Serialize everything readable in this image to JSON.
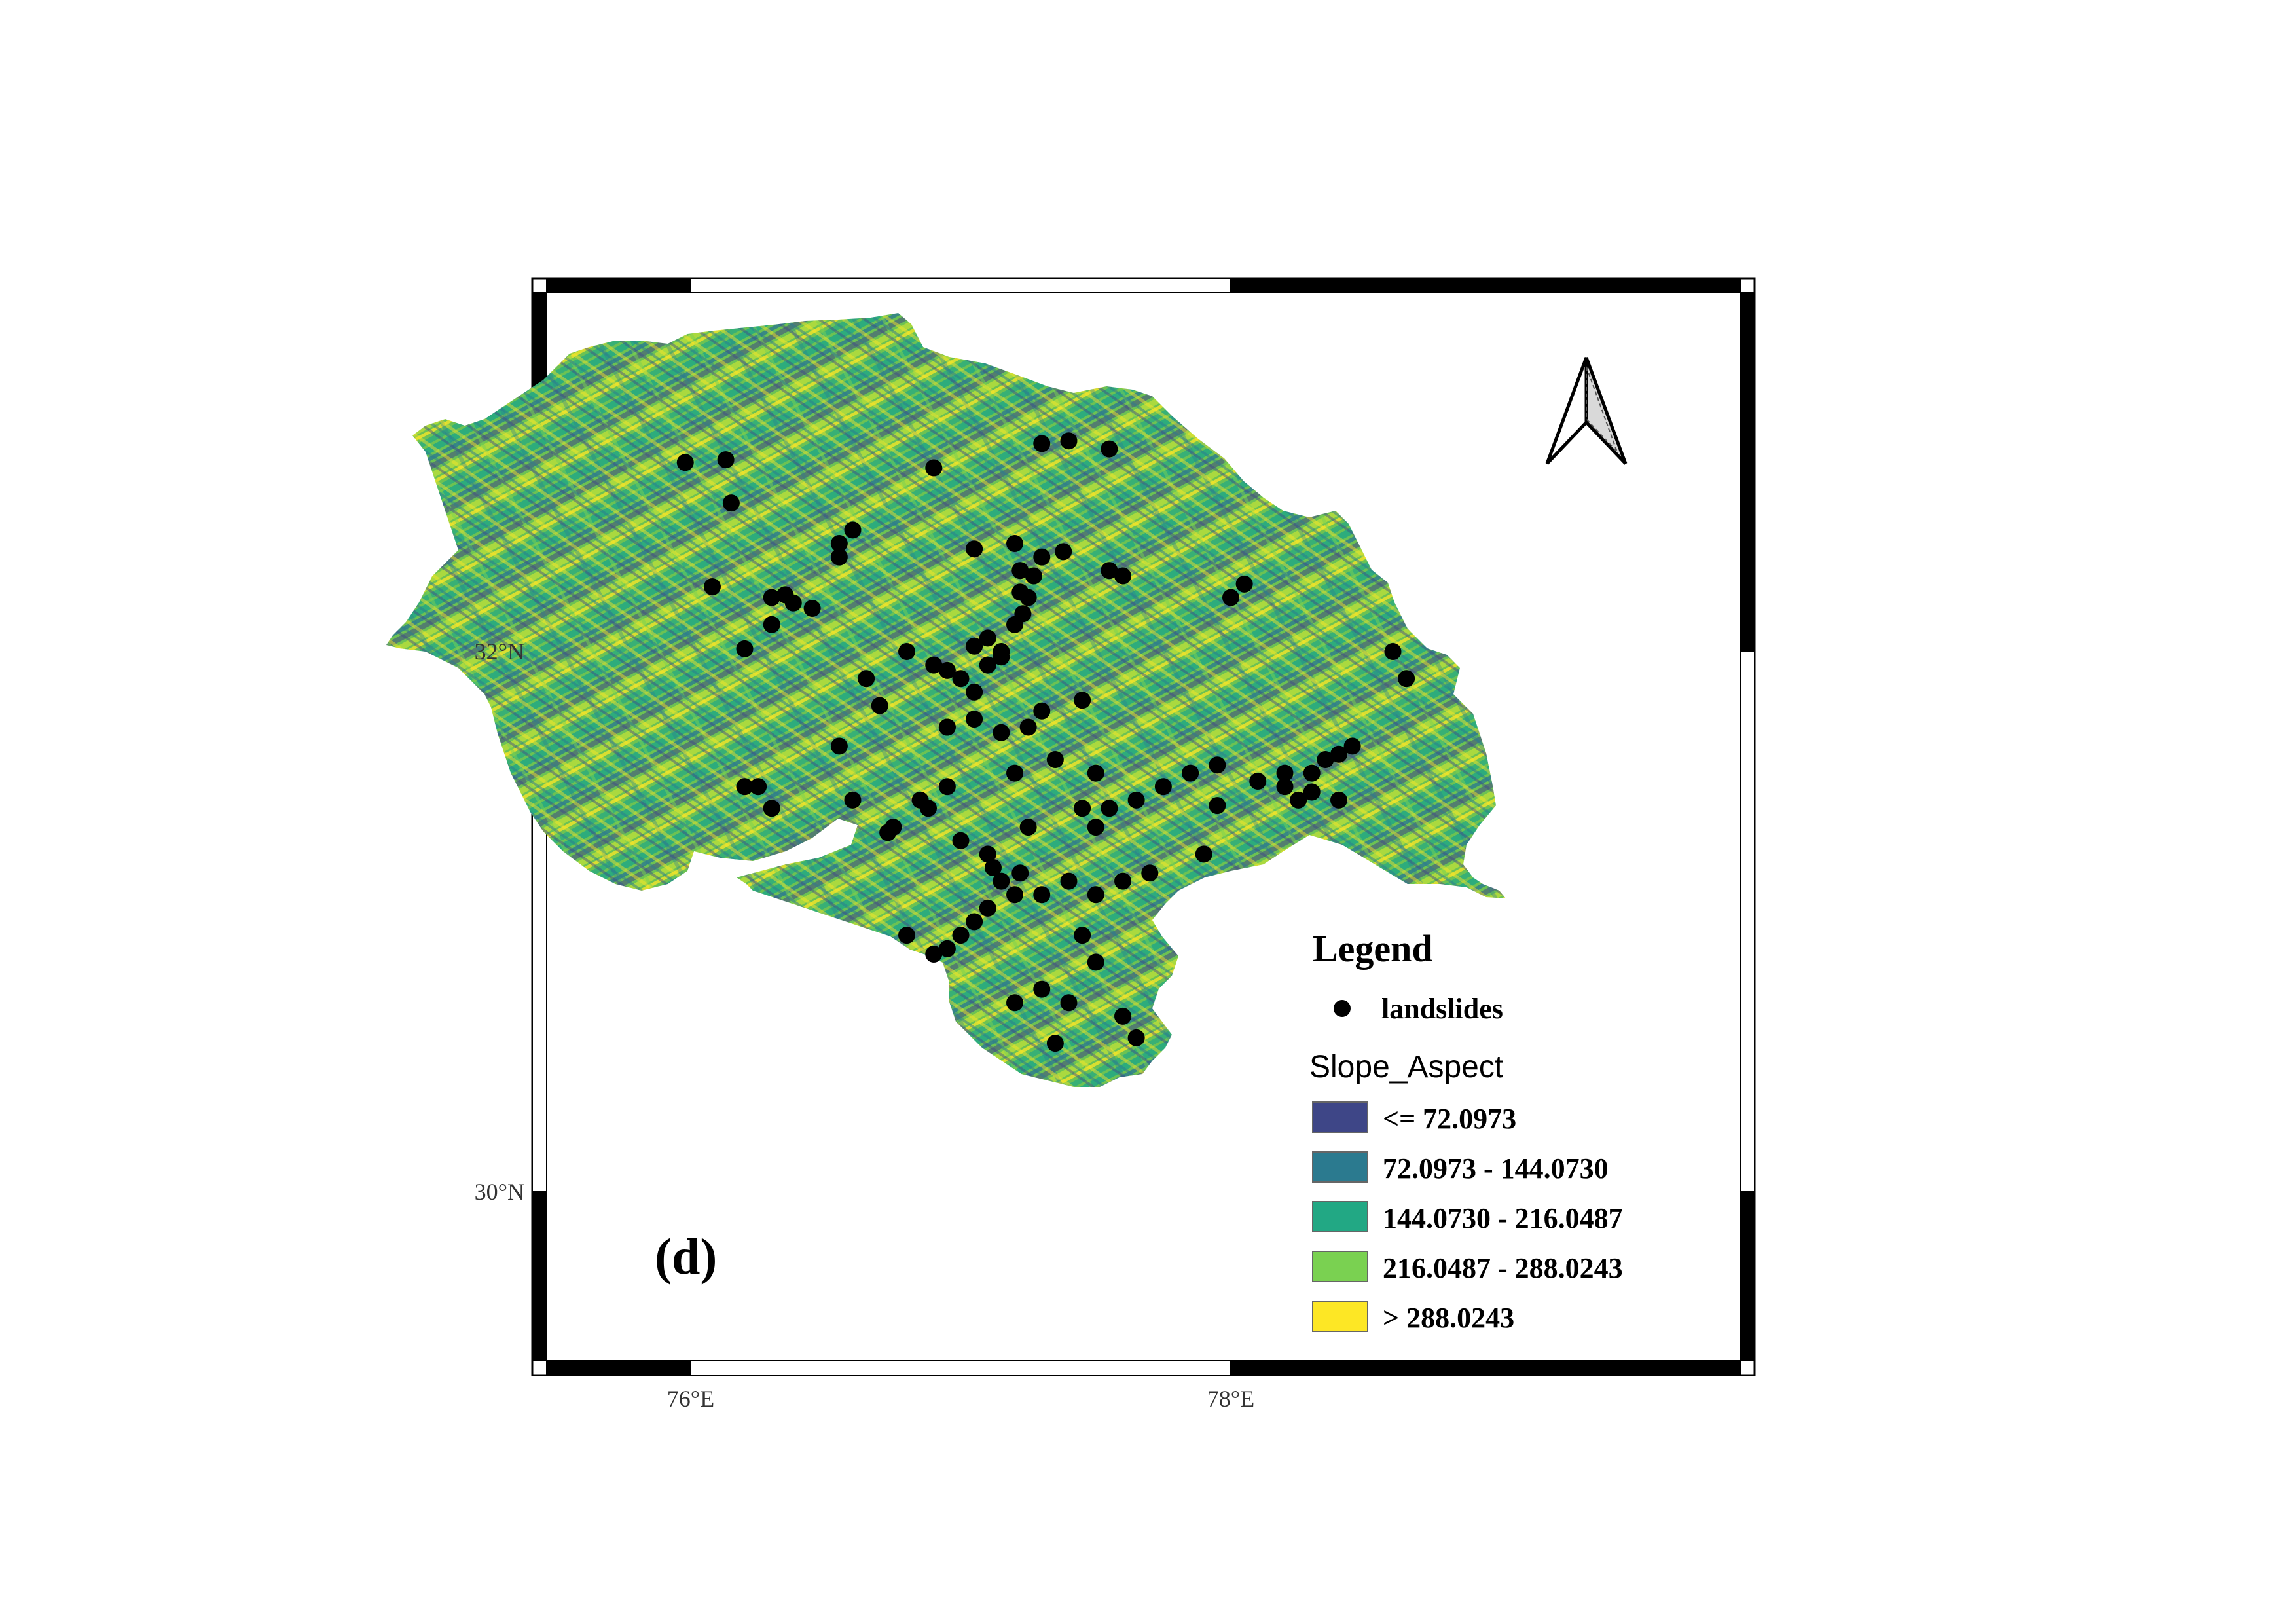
{
  "axes": {
    "x_ticks": [
      {
        "value": 76,
        "label": "76°E"
      },
      {
        "value": 78,
        "label": "78°E"
      }
    ],
    "y_ticks": [
      {
        "value": 32,
        "label": "32°N"
      },
      {
        "value": 30,
        "label": "30°N"
      }
    ]
  },
  "panel_label": "(d)",
  "north_arrow_icon": "north-arrow-icon",
  "legend": {
    "title": "Legend",
    "point_label": "landslides",
    "raster_title": "Slope_Aspect",
    "classes": [
      {
        "label": "<= 72.0973",
        "color": "#3e4687"
      },
      {
        "label": "72.0973 - 144.0730",
        "color": "#2b7a8f"
      },
      {
        "label": "144.0730 - 216.0487",
        "color": "#22a884"
      },
      {
        "label": "216.0487 - 288.0243",
        "color": "#7ad151"
      },
      {
        "label": "> 288.0243",
        "color": "#fde725"
      }
    ]
  },
  "landslides": [
    [
      75.98,
      32.7
    ],
    [
      76.13,
      32.71
    ],
    [
      76.15,
      32.55
    ],
    [
      76.08,
      32.24
    ],
    [
      76.2,
      32.01
    ],
    [
      76.3,
      32.2
    ],
    [
      76.35,
      32.21
    ],
    [
      76.38,
      32.18
    ],
    [
      76.45,
      32.16
    ],
    [
      76.3,
      32.1
    ],
    [
      76.55,
      32.4
    ],
    [
      76.6,
      32.45
    ],
    [
      76.9,
      32.68
    ],
    [
      77.3,
      32.77
    ],
    [
      77.4,
      32.78
    ],
    [
      77.55,
      32.75
    ],
    [
      77.05,
      32.38
    ],
    [
      77.2,
      32.4
    ],
    [
      77.3,
      32.35
    ],
    [
      77.38,
      32.37
    ],
    [
      77.22,
      32.3
    ],
    [
      77.25,
      32.2
    ],
    [
      77.2,
      32.1
    ],
    [
      77.15,
      32.0
    ],
    [
      77.1,
      31.95
    ],
    [
      77.0,
      31.9
    ],
    [
      77.05,
      31.85
    ],
    [
      76.95,
      31.93
    ],
    [
      76.8,
      32.0
    ],
    [
      76.65,
      31.9
    ],
    [
      76.7,
      31.8
    ],
    [
      76.95,
      31.72
    ],
    [
      77.05,
      31.75
    ],
    [
      77.15,
      31.7
    ],
    [
      77.25,
      31.72
    ],
    [
      77.3,
      31.78
    ],
    [
      77.45,
      31.82
    ],
    [
      77.5,
      31.55
    ],
    [
      77.35,
      31.6
    ],
    [
      77.2,
      31.55
    ],
    [
      77.45,
      31.42
    ],
    [
      77.55,
      31.42
    ],
    [
      77.65,
      31.45
    ],
    [
      77.75,
      31.5
    ],
    [
      77.85,
      31.55
    ],
    [
      77.95,
      31.58
    ],
    [
      78.1,
      31.52
    ],
    [
      78.2,
      31.5
    ],
    [
      78.25,
      31.45
    ],
    [
      78.3,
      31.55
    ],
    [
      78.35,
      31.6
    ],
    [
      78.4,
      31.62
    ],
    [
      78.45,
      31.65
    ],
    [
      78.3,
      31.48
    ],
    [
      78.2,
      31.55
    ],
    [
      77.6,
      32.28
    ],
    [
      77.55,
      32.3
    ],
    [
      78.0,
      32.2
    ],
    [
      78.05,
      32.25
    ],
    [
      78.6,
      32.0
    ],
    [
      78.65,
      31.9
    ],
    [
      78.4,
      31.45
    ],
    [
      77.1,
      31.25
    ],
    [
      77.15,
      31.15
    ],
    [
      77.2,
      31.1
    ],
    [
      77.1,
      31.05
    ],
    [
      77.05,
      31.0
    ],
    [
      77.0,
      30.95
    ],
    [
      76.95,
      30.9
    ],
    [
      76.9,
      30.88
    ],
    [
      76.8,
      30.95
    ],
    [
      77.3,
      31.1
    ],
    [
      77.4,
      31.15
    ],
    [
      77.5,
      31.1
    ],
    [
      77.6,
      31.15
    ],
    [
      77.7,
      31.18
    ],
    [
      77.45,
      30.95
    ],
    [
      77.5,
      30.85
    ],
    [
      77.4,
      30.7
    ],
    [
      77.3,
      30.75
    ],
    [
      77.2,
      30.7
    ],
    [
      77.6,
      30.65
    ],
    [
      77.65,
      30.57
    ],
    [
      77.35,
      30.55
    ],
    [
      76.95,
      31.5
    ],
    [
      76.85,
      31.45
    ],
    [
      76.75,
      31.35
    ],
    [
      76.55,
      31.65
    ],
    [
      76.6,
      31.45
    ],
    [
      76.2,
      31.5
    ],
    [
      76.3,
      31.42
    ],
    [
      76.25,
      31.5
    ],
    [
      77.0,
      31.3
    ],
    [
      77.25,
      31.35
    ],
    [
      77.5,
      31.35
    ],
    [
      77.9,
      31.25
    ],
    [
      77.95,
      31.43
    ],
    [
      76.55,
      32.35
    ],
    [
      77.05,
      32.02
    ],
    [
      77.1,
      32.05
    ],
    [
      77.15,
      31.98
    ],
    [
      77.23,
      32.14
    ],
    [
      77.27,
      32.28
    ],
    [
      77.22,
      32.22
    ],
    [
      77.12,
      31.2
    ],
    [
      77.22,
      31.18
    ],
    [
      76.9,
      31.95
    ],
    [
      76.95,
      31.72
    ],
    [
      76.88,
      31.42
    ],
    [
      76.73,
      31.33
    ]
  ]
}
